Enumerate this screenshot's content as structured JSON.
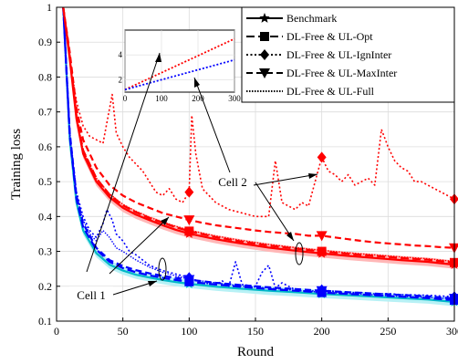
{
  "chart_data": {
    "type": "line",
    "xlabel": "Round",
    "ylabel": "Training loss",
    "xlim": [
      0,
      300
    ],
    "ylim": [
      0.1,
      1.0
    ],
    "xticks": [
      "0",
      "50",
      "100",
      "150",
      "200",
      "250",
      "300"
    ],
    "yticks": [
      "0.1",
      "0.2",
      "0.3",
      "0.4",
      "0.5",
      "0.6",
      "0.7",
      "0.8",
      "0.9",
      "1"
    ],
    "grid": true,
    "legend_position": "top-right",
    "legend": [
      {
        "label": "Benchmark",
        "marker": "star",
        "dash": "solid"
      },
      {
        "label": "DL-Free & UL-Opt",
        "marker": "square",
        "dash": "dash"
      },
      {
        "label": "DL-Free & UL-IgnInter",
        "marker": "diamond",
        "dash": "dot"
      },
      {
        "label": "DL-Free & UL-MaxInter",
        "marker": "triangle-down",
        "dash": "dash"
      },
      {
        "label": "DL-Free & UL-Full",
        "marker": "none",
        "dash": "dot"
      }
    ],
    "annotations": [
      "Cell 1",
      "Cell 2"
    ],
    "colors": {
      "cell1_benchmark": "#00b8c8",
      "cell1_shade": "#b7f1f5",
      "cell1_curves": "#0000ff",
      "cell2_benchmark": "#ff0000",
      "cell2_shade": "#ffb7b7",
      "cell2_curves": "#ff0000",
      "grid": "#dcdcdc"
    },
    "series": [
      {
        "cell": "Cell 1",
        "style": "benchmark",
        "x": [
          5,
          10,
          15,
          20,
          30,
          40,
          50,
          60,
          70,
          80,
          90,
          100,
          120,
          140,
          160,
          180,
          200,
          220,
          240,
          260,
          280,
          300
        ],
        "y": [
          1.0,
          0.62,
          0.44,
          0.36,
          0.295,
          0.262,
          0.245,
          0.233,
          0.225,
          0.218,
          0.212,
          0.207,
          0.199,
          0.193,
          0.187,
          0.183,
          0.178,
          0.174,
          0.17,
          0.166,
          0.162,
          0.155
        ]
      },
      {
        "cell": "Cell 1",
        "style": "opt",
        "x": [
          5,
          10,
          15,
          20,
          30,
          40,
          50,
          60,
          70,
          80,
          90,
          100,
          120,
          140,
          160,
          180,
          200,
          220,
          240,
          260,
          280,
          300
        ],
        "y": [
          1.0,
          0.63,
          0.45,
          0.37,
          0.305,
          0.27,
          0.252,
          0.24,
          0.231,
          0.224,
          0.218,
          0.213,
          0.205,
          0.198,
          0.192,
          0.187,
          0.182,
          0.178,
          0.174,
          0.17,
          0.166,
          0.16
        ]
      },
      {
        "cell": "Cell 1",
        "style": "ignInter",
        "x": [
          5,
          10,
          15,
          20,
          25,
          30,
          35,
          38,
          42,
          45,
          50,
          55,
          60,
          70,
          80,
          90,
          100,
          110,
          120,
          125,
          130,
          135,
          140,
          150,
          155,
          160,
          165,
          170,
          180,
          190,
          200,
          210,
          220,
          230,
          240,
          250,
          260,
          270,
          280,
          290,
          300
        ],
        "y": [
          1.0,
          0.64,
          0.47,
          0.4,
          0.36,
          0.34,
          0.38,
          0.42,
          0.39,
          0.35,
          0.33,
          0.3,
          0.29,
          0.26,
          0.245,
          0.235,
          0.225,
          0.21,
          0.205,
          0.215,
          0.2,
          0.27,
          0.205,
          0.2,
          0.24,
          0.26,
          0.195,
          0.21,
          0.19,
          0.185,
          0.19,
          0.185,
          0.182,
          0.182,
          0.178,
          0.179,
          0.176,
          0.175,
          0.174,
          0.172,
          0.17
        ]
      },
      {
        "cell": "Cell 1",
        "style": "maxInter",
        "x": [
          5,
          10,
          15,
          20,
          30,
          40,
          50,
          60,
          70,
          80,
          90,
          100,
          120,
          140,
          160,
          180,
          200,
          220,
          240,
          260,
          280,
          300
        ],
        "y": [
          1.0,
          0.64,
          0.46,
          0.38,
          0.31,
          0.275,
          0.258,
          0.246,
          0.237,
          0.23,
          0.224,
          0.219,
          0.21,
          0.203,
          0.197,
          0.192,
          0.187,
          0.183,
          0.179,
          0.175,
          0.171,
          0.165
        ]
      },
      {
        "cell": "Cell 1",
        "style": "full",
        "x": [
          5,
          10,
          15,
          20,
          25,
          30,
          35,
          40,
          45,
          50,
          60,
          70,
          80,
          90,
          100,
          120,
          140,
          160,
          180,
          200,
          220,
          240,
          260,
          280,
          300
        ],
        "y": [
          1.0,
          0.63,
          0.46,
          0.39,
          0.35,
          0.33,
          0.36,
          0.34,
          0.31,
          0.3,
          0.275,
          0.255,
          0.24,
          0.23,
          0.22,
          0.21,
          0.2,
          0.195,
          0.188,
          0.183,
          0.179,
          0.175,
          0.171,
          0.168,
          0.164
        ]
      },
      {
        "cell": "Cell 2",
        "style": "benchmark",
        "x": [
          5,
          10,
          15,
          20,
          30,
          40,
          50,
          60,
          70,
          80,
          90,
          100,
          120,
          140,
          160,
          180,
          200,
          220,
          240,
          260,
          280,
          300
        ],
        "y": [
          1.0,
          0.85,
          0.68,
          0.58,
          0.5,
          0.455,
          0.425,
          0.405,
          0.39,
          0.375,
          0.362,
          0.351,
          0.335,
          0.322,
          0.311,
          0.302,
          0.294,
          0.287,
          0.281,
          0.275,
          0.27,
          0.262
        ]
      },
      {
        "cell": "Cell 2",
        "style": "opt",
        "x": [
          5,
          10,
          15,
          20,
          30,
          40,
          50,
          60,
          70,
          80,
          90,
          100,
          120,
          140,
          160,
          180,
          200,
          220,
          240,
          260,
          280,
          300
        ],
        "y": [
          1.0,
          0.86,
          0.69,
          0.59,
          0.51,
          0.462,
          0.432,
          0.412,
          0.396,
          0.382,
          0.369,
          0.358,
          0.341,
          0.328,
          0.317,
          0.308,
          0.3,
          0.293,
          0.287,
          0.281,
          0.276,
          0.268
        ]
      },
      {
        "cell": "Cell 2",
        "style": "ignInter",
        "x": [
          5,
          10,
          15,
          20,
          25,
          30,
          35,
          40,
          42,
          45,
          50,
          55,
          60,
          65,
          70,
          75,
          80,
          85,
          90,
          95,
          100,
          102,
          105,
          110,
          120,
          130,
          140,
          150,
          160,
          165,
          170,
          175,
          180,
          185,
          190,
          195,
          200,
          205,
          210,
          215,
          220,
          225,
          230,
          235,
          240,
          245,
          250,
          255,
          260,
          265,
          270,
          275,
          280,
          285,
          290,
          295,
          300
        ],
        "y": [
          1.0,
          0.85,
          0.73,
          0.66,
          0.63,
          0.62,
          0.61,
          0.71,
          0.75,
          0.64,
          0.6,
          0.57,
          0.55,
          0.53,
          0.5,
          0.47,
          0.46,
          0.48,
          0.45,
          0.44,
          0.47,
          0.69,
          0.58,
          0.48,
          0.44,
          0.42,
          0.41,
          0.4,
          0.4,
          0.56,
          0.44,
          0.43,
          0.42,
          0.44,
          0.43,
          0.5,
          0.57,
          0.53,
          0.52,
          0.5,
          0.52,
          0.49,
          0.5,
          0.51,
          0.49,
          0.65,
          0.6,
          0.56,
          0.54,
          0.53,
          0.5,
          0.5,
          0.49,
          0.48,
          0.47,
          0.46,
          0.45
        ]
      },
      {
        "cell": "Cell 2",
        "style": "maxInter",
        "x": [
          5,
          10,
          15,
          20,
          30,
          40,
          50,
          60,
          70,
          80,
          90,
          100,
          110,
          120,
          130,
          140,
          150,
          160,
          170,
          180,
          190,
          200,
          210,
          220,
          230,
          240,
          250,
          260,
          270,
          280,
          290,
          300
        ],
        "y": [
          1.0,
          0.87,
          0.71,
          0.62,
          0.54,
          0.49,
          0.46,
          0.44,
          0.425,
          0.41,
          0.4,
          0.39,
          0.382,
          0.375,
          0.37,
          0.365,
          0.36,
          0.356,
          0.353,
          0.35,
          0.345,
          0.345,
          0.34,
          0.335,
          0.33,
          0.326,
          0.323,
          0.32,
          0.317,
          0.315,
          0.312,
          0.31
        ]
      },
      {
        "cell": "Cell 2",
        "style": "full",
        "x": [
          5,
          10,
          15,
          20,
          30,
          40,
          50,
          60,
          70,
          80,
          90,
          100,
          120,
          140,
          160,
          180,
          200,
          220,
          240,
          260,
          280,
          300
        ],
        "y": [
          1.0,
          0.86,
          0.69,
          0.59,
          0.51,
          0.465,
          0.435,
          0.415,
          0.398,
          0.384,
          0.372,
          0.361,
          0.344,
          0.331,
          0.32,
          0.311,
          0.303,
          0.296,
          0.29,
          0.284,
          0.279,
          0.271
        ]
      }
    ],
    "inset": {
      "xlim": [
        0,
        300
      ],
      "ylim": [
        1,
        6
      ],
      "xticks": [
        "0",
        "100",
        "200",
        "300"
      ],
      "yticks": [
        "2",
        "4"
      ],
      "series": [
        {
          "name": "red",
          "x": [
            0,
            300
          ],
          "y": [
            1.2,
            5.3
          ]
        },
        {
          "name": "blue",
          "x": [
            0,
            300
          ],
          "y": [
            1.2,
            3.6
          ]
        }
      ]
    }
  }
}
